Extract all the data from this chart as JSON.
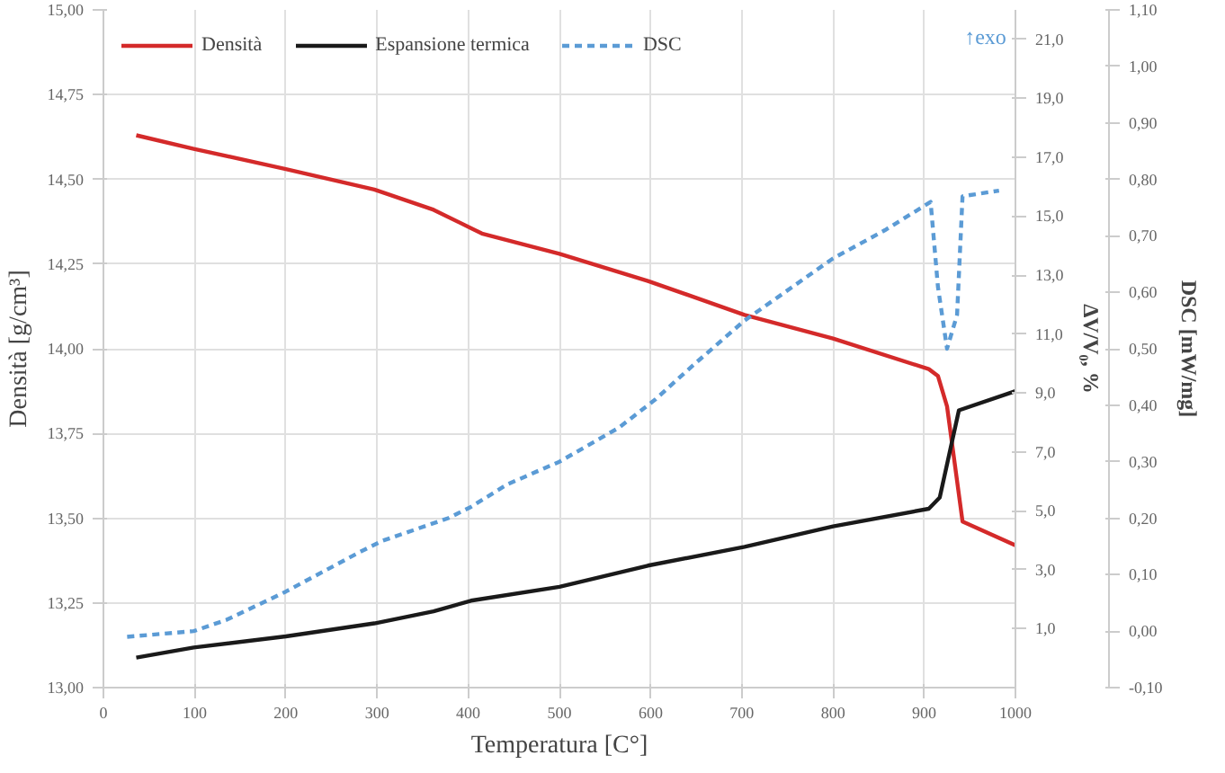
{
  "chart_data": {
    "type": "line",
    "xlabel": "Temperatura [C°]",
    "ylabel": "Densità [g/cm³]",
    "y2label": "ΔV/V₀, %",
    "y3label": "DSC [mW/mg]",
    "x": [
      36,
      99,
      200,
      297,
      362,
      415,
      500,
      597,
      703,
      800,
      905,
      915,
      925,
      942,
      1000
    ],
    "xlim": [
      0,
      1000
    ],
    "xticks": [
      0,
      100,
      200,
      300,
      400,
      500,
      600,
      700,
      800,
      900,
      1000
    ],
    "ylim": [
      13.0,
      15.0
    ],
    "yticks": [
      {
        "value": 13.0,
        "label": "13,00"
      },
      {
        "value": 13.25,
        "label": "13,25"
      },
      {
        "value": 13.5,
        "label": "13,50"
      },
      {
        "value": 13.75,
        "label": "13,75"
      },
      {
        "value": 14.0,
        "label": "14,00"
      },
      {
        "value": 14.25,
        "label": "14,25"
      },
      {
        "value": 14.5,
        "label": "14,50"
      },
      {
        "value": 14.75,
        "label": "14,75"
      },
      {
        "value": 15.0,
        "label": "15,00"
      }
    ],
    "y2lim": [
      -1,
      22
    ],
    "y2ticks": [
      {
        "value": 1,
        "label": "1,0"
      },
      {
        "value": 3,
        "label": "3,0"
      },
      {
        "value": 5,
        "label": "5,0"
      },
      {
        "value": 7,
        "label": "7,0"
      },
      {
        "value": 9,
        "label": "9,0"
      },
      {
        "value": 11,
        "label": "11,0"
      },
      {
        "value": 13,
        "label": "13,0"
      },
      {
        "value": 15,
        "label": "15,0"
      },
      {
        "value": 17,
        "label": "17,0"
      },
      {
        "value": 19,
        "label": "19,0"
      },
      {
        "value": 21,
        "label": "21,0"
      }
    ],
    "y3lim": [
      -0.1,
      1.1
    ],
    "y3ticks": [
      {
        "value": -0.1,
        "label": "-0,10"
      },
      {
        "value": 0.0,
        "label": "0,00"
      },
      {
        "value": 0.1,
        "label": "0,10"
      },
      {
        "value": 0.2,
        "label": "0,20"
      },
      {
        "value": 0.3,
        "label": "0,30"
      },
      {
        "value": 0.4,
        "label": "0,40"
      },
      {
        "value": 0.5,
        "label": "0,50"
      },
      {
        "value": 0.6,
        "label": "0,60"
      },
      {
        "value": 0.7,
        "label": "0,70"
      },
      {
        "value": 0.8,
        "label": "0,80"
      },
      {
        "value": 0.9,
        "label": "0,90"
      },
      {
        "value": 1.0,
        "label": "1,00"
      },
      {
        "value": 1.1,
        "label": "1,10"
      }
    ],
    "grid": true,
    "legend": "top",
    "series": [
      {
        "name": "Densità",
        "color": "#d42a2a",
        "line_style": "solid",
        "values": [
          14.63,
          14.59,
          14.53,
          14.47,
          14.41,
          14.34,
          14.28,
          14.2,
          14.1,
          14.03,
          13.94,
          13.92,
          13.83,
          13.49,
          13.42
        ]
      },
      {
        "name": "Espansione termica",
        "color": "#1a1a1a",
        "line_style": "solid",
        "axis": "y2",
        "x": [
          36,
          99,
          200,
          297,
          362,
          403,
          500,
          597,
          703,
          800,
          905,
          917,
          938,
          1000
        ],
        "values": [
          0.02,
          0.36,
          0.74,
          1.18,
          1.59,
          1.95,
          2.42,
          3.14,
          3.78,
          4.47,
          5.07,
          5.45,
          8.41,
          9.06
        ]
      },
      {
        "name": "DSC",
        "color": "#5b9bd5",
        "line_style": "dashed",
        "axis": "y3",
        "x": [
          26,
          99,
          135,
          200,
          281,
          306,
          378,
          403,
          443,
          500,
          565,
          605,
          646,
          703,
          800,
          857,
          907,
          915,
          925,
          936,
          942,
          982
        ],
        "values": [
          -0.01,
          0.0,
          0.02,
          0.07,
          0.14,
          0.16,
          0.2,
          0.22,
          0.26,
          0.3,
          0.36,
          0.41,
          0.47,
          0.55,
          0.66,
          0.71,
          0.76,
          0.61,
          0.5,
          0.56,
          0.77,
          0.78
        ]
      }
    ],
    "annotations": [
      "↑exo"
    ]
  }
}
